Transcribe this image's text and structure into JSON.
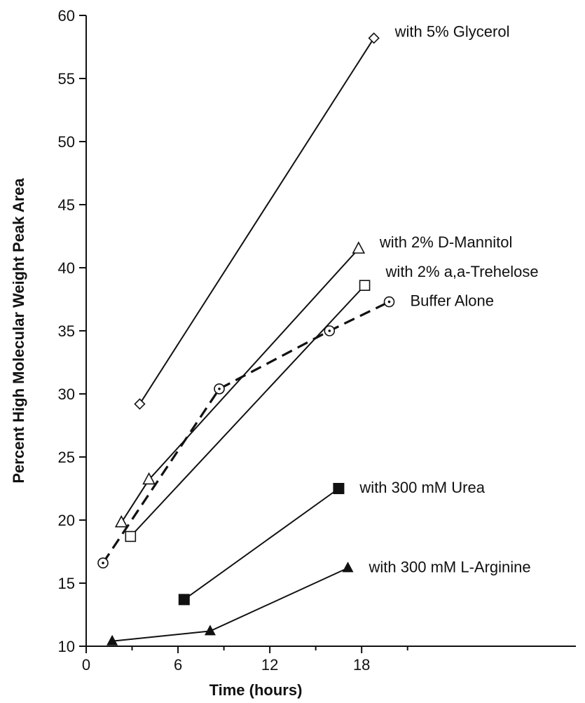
{
  "chart_data": {
    "type": "line",
    "title": "",
    "xlabel": "Time (hours)",
    "ylabel": "Percent High Molecular Weight Peak Area",
    "xlim": [
      0,
      32
    ],
    "ylim": [
      10,
      60
    ],
    "x_ticks": [
      0,
      6,
      12,
      18
    ],
    "x_tick_labels": [
      "0",
      "6",
      "12",
      "18"
    ],
    "y_ticks": [
      10,
      15,
      20,
      25,
      30,
      35,
      40,
      45,
      50,
      55,
      60
    ],
    "y_tick_labels": [
      "10",
      "15",
      "20",
      "25",
      "30",
      "35",
      "40",
      "45",
      "50",
      "55",
      "60"
    ],
    "grid": false,
    "legend": "inline labels at line ends",
    "series": [
      {
        "name": "with 5% Glycerol",
        "marker": "diamond-open",
        "line": "solid",
        "x": [
          3.5,
          18.8
        ],
        "y": [
          29.2,
          58.2
        ]
      },
      {
        "name": "with 2% D-Mannitol",
        "marker": "triangle-open",
        "line": "solid",
        "x": [
          2.3,
          4.1,
          17.8
        ],
        "y": [
          19.8,
          23.2,
          41.5
        ]
      },
      {
        "name": "with 2% a,a-Trehelose",
        "marker": "square-open",
        "line": "solid",
        "x": [
          2.9,
          18.2
        ],
        "y": [
          18.7,
          38.6
        ]
      },
      {
        "name": "Buffer Alone",
        "marker": "circle-dot-open",
        "line": "dashed",
        "x": [
          1.1,
          8.7,
          15.9,
          19.8
        ],
        "y": [
          16.6,
          30.4,
          35.0,
          37.3
        ]
      },
      {
        "name": "with 300 mM Urea",
        "marker": "square-filled",
        "line": "solid",
        "x": [
          6.4,
          16.5
        ],
        "y": [
          13.7,
          22.5
        ]
      },
      {
        "name": "with 300 mM L-Arginine",
        "marker": "triangle-filled",
        "line": "solid",
        "x": [
          1.7,
          8.1,
          17.1
        ],
        "y": [
          10.4,
          11.2,
          16.2
        ]
      }
    ]
  }
}
